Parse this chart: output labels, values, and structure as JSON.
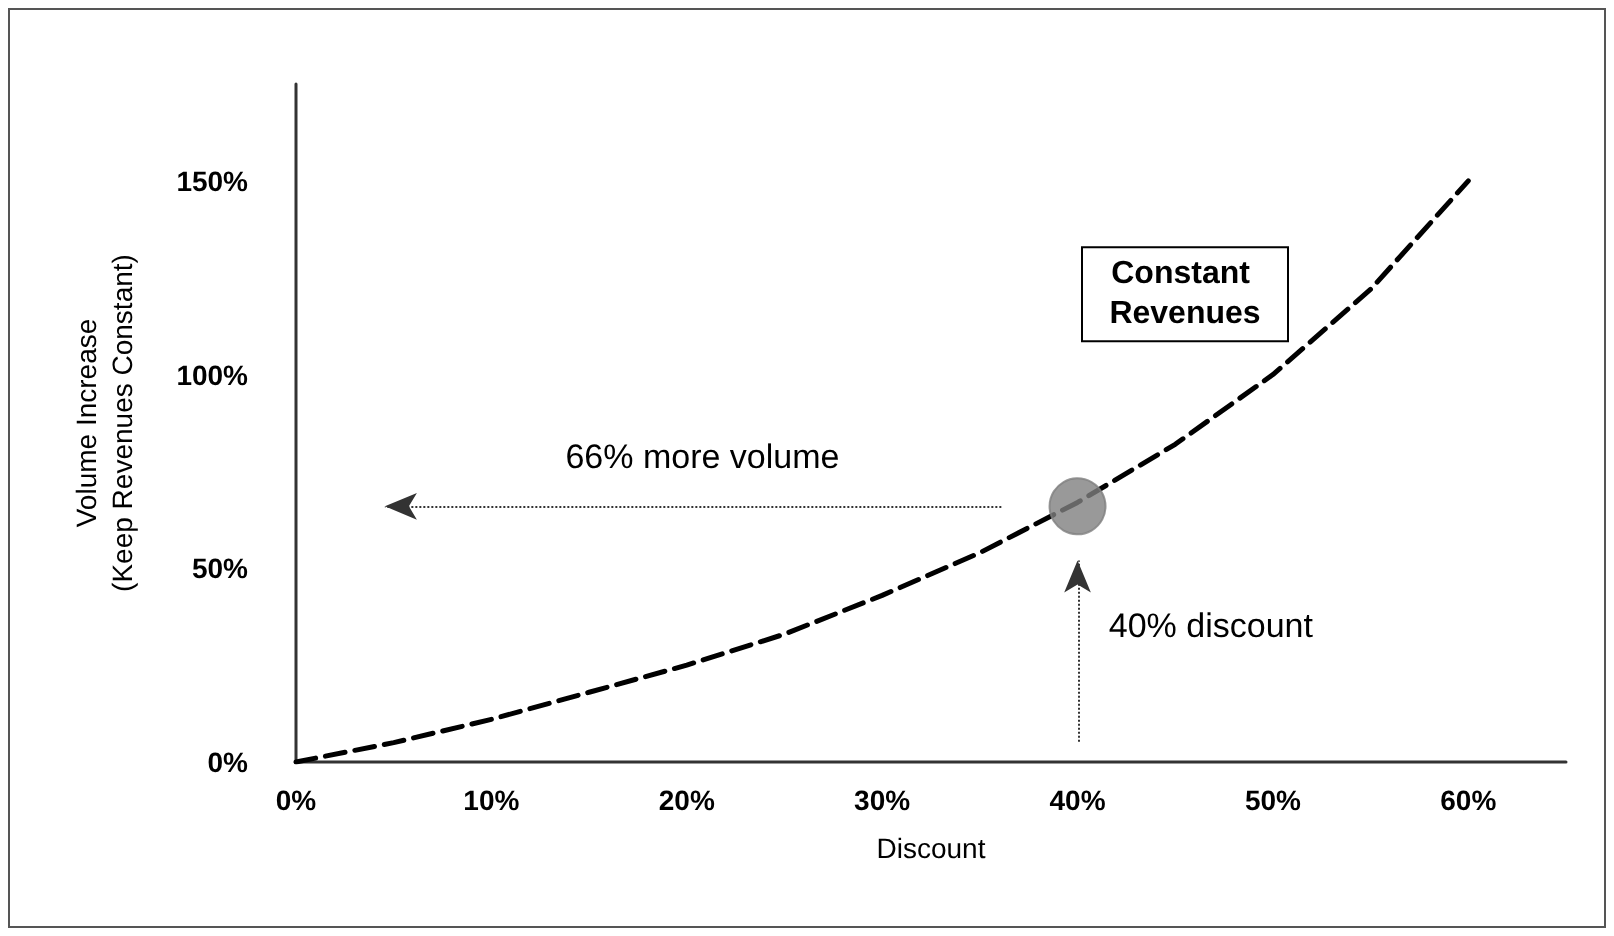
{
  "chart_data": {
    "type": "line",
    "xlabel": "Discount",
    "ylabel": "Volume Increase\n(Keep Revenues Constant)",
    "x": [
      0,
      5,
      10,
      15,
      20,
      25,
      30,
      35,
      40,
      45,
      50,
      55,
      60
    ],
    "series": [
      {
        "type": "line",
        "color": "#000000",
        "line_style": "dashed",
        "marker": "none",
        "values": [
          0,
          5,
          11,
          18,
          25,
          33,
          43,
          54,
          67,
          82,
          100,
          122,
          150
        ]
      },
      {
        "type": "scatter",
        "color": "#808080",
        "marker": "circle",
        "x": [
          40
        ],
        "values": [
          66
        ]
      }
    ],
    "xlim": [
      0,
      65
    ],
    "xticks": [
      {
        "value": 0,
        "label": "0%"
      },
      {
        "value": 10,
        "label": "10%"
      },
      {
        "value": 20,
        "label": "20%"
      },
      {
        "value": 30,
        "label": "30%"
      },
      {
        "value": 40,
        "label": "40%"
      },
      {
        "value": 50,
        "label": "50%"
      },
      {
        "value": 60,
        "label": "60%"
      }
    ],
    "ylim": [
      0,
      175
    ],
    "yticks": [
      {
        "value": 0,
        "label": "0%"
      },
      {
        "value": 50,
        "label": "50%"
      },
      {
        "value": 100,
        "label": "100%"
      },
      {
        "value": 150,
        "label": "150%"
      }
    ],
    "grid": false,
    "annotations": [
      "66% more volume",
      "40% discount",
      "Constant Revenues"
    ]
  }
}
